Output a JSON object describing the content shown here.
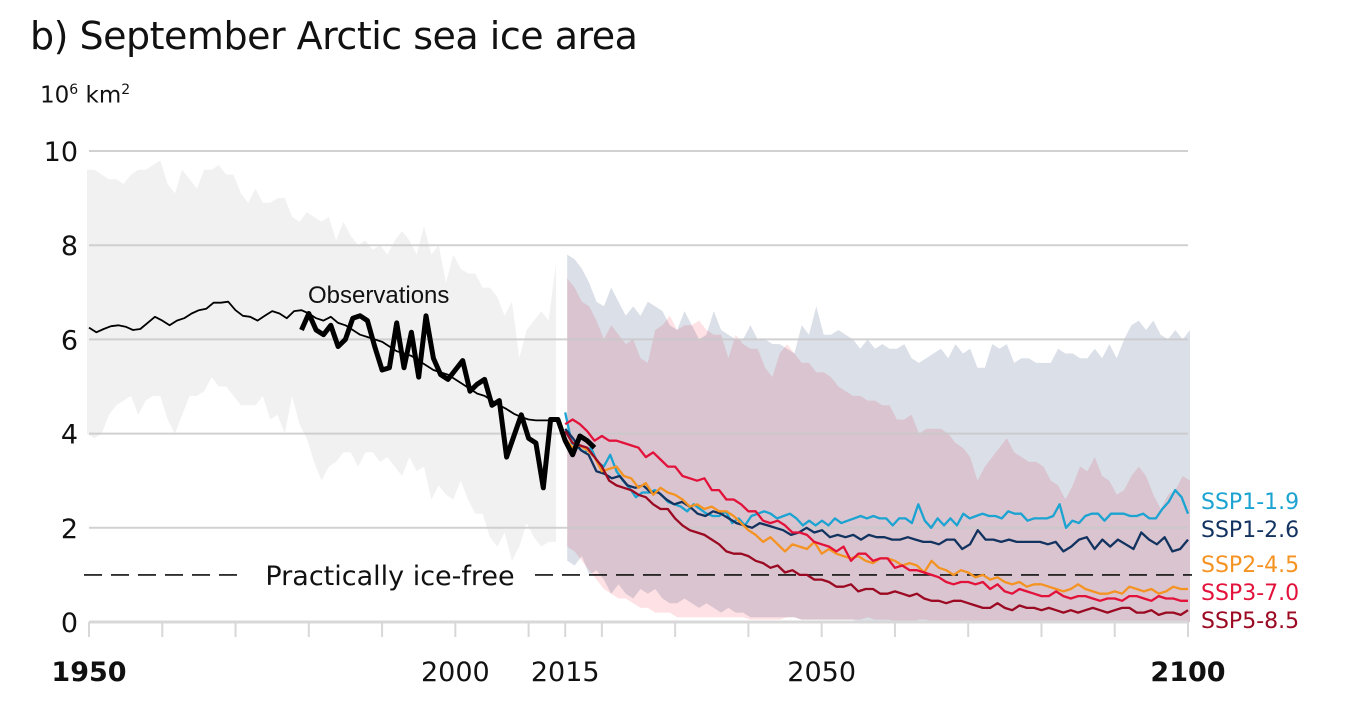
{
  "chart_data": {
    "type": "line",
    "title": "b) September Arctic sea ice area",
    "unit_label": {
      "base": "10",
      "exp": "6",
      "rest": " km",
      "rest_exp": "2"
    },
    "xlabel": "",
    "ylabel": "10^6 km^2",
    "xlim": [
      1950,
      2100
    ],
    "ylim": [
      0,
      10
    ],
    "grid": true,
    "y_ticks": [
      0,
      2,
      4,
      6,
      8,
      10
    ],
    "x_tick_marks": [
      1950,
      1960,
      1970,
      1980,
      1990,
      2000,
      2010,
      2015,
      2020,
      2030,
      2040,
      2050,
      2060,
      2070,
      2080,
      2090,
      2100
    ],
    "x_tick_labels": [
      {
        "year": 1950,
        "label": "1950",
        "bold": true
      },
      {
        "year": 2000,
        "label": "2000",
        "bold": false
      },
      {
        "year": 2015,
        "label": "2015",
        "bold": false
      },
      {
        "year": 2050,
        "label": "2050",
        "bold": false
      },
      {
        "year": 2100,
        "label": "2100",
        "bold": true
      }
    ],
    "reference_line": {
      "value": 1,
      "label": "Practically ice-free",
      "style": "dashed"
    },
    "observations_label": "Observations",
    "legend_placement": "right",
    "historical_band": {
      "color": "#f1f1f1",
      "x_start": 1950,
      "upper": [
        9.6,
        9.6,
        9.5,
        9.4,
        9.4,
        9.3,
        9.5,
        9.6,
        9.6,
        9.7,
        9.8,
        9.3,
        9.1,
        9.6,
        9.4,
        9.2,
        9.6,
        9.6,
        9.7,
        9.5,
        9.5,
        9.1,
        8.9,
        9.2,
        8.9,
        8.9,
        9.0,
        9.0,
        8.6,
        8.5,
        8.7,
        8.6,
        8.5,
        8.6,
        8.1,
        8.5,
        8.2,
        8.0,
        8.1,
        7.9,
        8.0,
        7.8,
        8.1,
        8.3,
        8.1,
        7.8,
        8.4,
        7.8,
        8.0,
        7.2,
        7.8,
        7.5,
        7.4,
        7.4,
        7.1,
        7.1,
        6.9,
        6.5,
        6.8,
        5.6,
        6.2,
        6.4,
        6.6,
        6.4,
        7.6
      ],
      "lower": [
        4.0,
        3.9,
        4.0,
        4.4,
        4.6,
        4.7,
        4.8,
        4.4,
        4.7,
        4.8,
        4.8,
        4.3,
        4.0,
        4.4,
        4.8,
        4.8,
        4.9,
        5.2,
        5.0,
        5.0,
        4.8,
        4.6,
        4.6,
        4.6,
        4.8,
        4.3,
        4.4,
        4.0,
        4.8,
        4.2,
        3.9,
        3.4,
        3.0,
        3.3,
        3.4,
        3.6,
        3.6,
        3.3,
        3.6,
        3.6,
        3.4,
        3.5,
        3.3,
        3.1,
        3.5,
        3.2,
        3.3,
        2.6,
        2.9,
        2.7,
        2.6,
        3.0,
        2.6,
        2.3,
        2.3,
        1.8,
        1.6,
        1.9,
        1.3,
        1.6,
        2.1,
        1.8,
        1.6,
        1.7,
        1.7
      ]
    },
    "historical_mean": {
      "color": "#000000",
      "x_start": 1950,
      "values": [
        6.25,
        6.15,
        6.22,
        6.28,
        6.3,
        6.27,
        6.2,
        6.22,
        6.35,
        6.48,
        6.4,
        6.3,
        6.4,
        6.45,
        6.55,
        6.62,
        6.65,
        6.78,
        6.78,
        6.8,
        6.62,
        6.5,
        6.48,
        6.4,
        6.5,
        6.6,
        6.55,
        6.45,
        6.6,
        6.62,
        6.55,
        6.45,
        6.4,
        6.48,
        6.35,
        6.3,
        6.2,
        6.1,
        6.05,
        6.0,
        5.95,
        5.85,
        5.75,
        5.7,
        5.65,
        5.55,
        5.45,
        5.35,
        5.3,
        5.25,
        5.15,
        5.05,
        4.95,
        4.85,
        4.8,
        4.7,
        4.6,
        4.52,
        4.42,
        4.35,
        4.3,
        4.28,
        4.28,
        4.28,
        4.28
      ]
    },
    "observations": {
      "color": "#000000",
      "x_start": 1979,
      "values": [
        6.2,
        6.55,
        6.2,
        6.1,
        6.3,
        5.85,
        6.0,
        6.45,
        6.5,
        6.4,
        5.85,
        5.35,
        5.4,
        6.35,
        5.4,
        6.15,
        5.2,
        6.5,
        5.6,
        5.25,
        5.15,
        5.35,
        5.55,
        4.9,
        5.05,
        5.15,
        4.6,
        4.7,
        3.5,
        3.95,
        4.4,
        3.9,
        3.8,
        2.85,
        4.3,
        4.3,
        3.85,
        3.55,
        3.95,
        3.85,
        3.7
      ]
    },
    "projection_bands": [
      {
        "name": "SSP1-2.6 range",
        "color": "#dadfe8",
        "x_start": 2015,
        "upper": [
          7.8,
          7.7,
          7.5,
          7.2,
          6.8,
          6.7,
          7.1,
          6.8,
          6.5,
          6.7,
          6.5,
          6.8,
          6.7,
          6.6,
          6.3,
          6.2,
          6.6,
          6.3,
          6.0,
          6.1,
          6.6,
          6.2,
          6.1,
          6.0,
          6.0,
          6.3,
          6.0,
          6.0,
          5.9,
          5.9,
          5.8,
          5.7,
          6.3,
          6.1,
          6.7,
          6.1,
          6.1,
          6.2,
          6.1,
          6.0,
          5.8,
          6.0,
          5.8,
          5.9,
          5.8,
          5.8,
          5.9,
          5.6,
          5.5,
          5.6,
          5.7,
          5.8,
          5.6,
          5.9,
          5.7,
          5.8,
          5.4,
          5.4,
          5.9,
          5.8,
          5.9,
          5.5,
          5.6,
          5.6,
          5.5,
          5.5,
          5.5,
          5.8,
          5.7,
          5.7,
          5.6,
          5.6,
          5.8,
          5.6,
          5.9,
          5.6,
          6.0,
          6.3,
          6.4,
          6.2,
          6.4,
          6.1,
          6.0,
          6.2,
          6.0,
          6.2
        ],
        "lower": [
          1.3,
          1.2,
          1.4,
          1.0,
          1.1,
          0.9,
          0.6,
          0.8,
          0.6,
          0.5,
          0.7,
          0.6,
          0.7,
          0.5,
          0.4,
          0.4,
          0.5,
          0.4,
          0.3,
          0.4,
          0.3,
          0.2,
          0.3,
          0.2,
          0.2,
          0.1,
          0.1,
          0.1,
          0.1,
          0.1,
          0.1,
          0.1,
          0.05,
          0.05,
          0.05,
          0.05,
          0.05,
          0.05,
          0.05,
          0.05,
          0.0,
          0.0,
          0.0,
          0.0,
          0.0,
          0.0,
          0.0,
          0.0,
          0.0,
          0.0,
          0.0,
          0.0,
          0.0,
          0.0,
          0.0,
          0.0,
          0.0,
          0.0,
          0.0,
          0.0,
          0.0,
          0.0,
          0.0,
          0.0,
          0.0,
          0.0,
          0.0,
          0.0,
          0.0,
          0.0,
          0.0,
          0.0,
          0.0,
          0.0,
          0.0,
          0.0,
          0.0,
          0.0,
          0.0,
          0.0,
          0.0,
          0.0,
          0.0,
          0.0,
          0.0,
          0.0
        ]
      },
      {
        "name": "SSP3-7.0 range",
        "color": "#fdd5da",
        "x_start": 2015,
        "upper": [
          7.3,
          7.1,
          6.8,
          6.7,
          6.4,
          6.0,
          6.3,
          6.1,
          5.9,
          6.0,
          5.6,
          5.5,
          6.2,
          6.3,
          6.5,
          6.2,
          6.3,
          6.3,
          6.4,
          6.2,
          6.1,
          6.1,
          5.6,
          6.1,
          5.9,
          5.8,
          5.8,
          5.4,
          5.2,
          5.7,
          5.9,
          5.7,
          5.5,
          5.5,
          5.3,
          5.3,
          5.2,
          5.0,
          4.9,
          4.8,
          4.8,
          4.7,
          4.7,
          4.6,
          4.6,
          4.3,
          4.3,
          4.4,
          4.0,
          4.1,
          4.1,
          4.1,
          4.0,
          3.8,
          3.7,
          3.5,
          3.0,
          3.3,
          3.5,
          3.7,
          3.9,
          3.6,
          3.5,
          3.4,
          3.4,
          3.3,
          3.0,
          2.9,
          2.6,
          2.9,
          3.3,
          3.2,
          3.5,
          3.1,
          3.0,
          2.7,
          2.8,
          3.1,
          3.3,
          3.1,
          2.7,
          2.4,
          2.7,
          2.8,
          3.1,
          3.0
        ],
        "lower": [
          1.6,
          1.5,
          1.3,
          1.1,
          0.9,
          0.7,
          0.6,
          0.5,
          0.5,
          0.4,
          0.3,
          0.3,
          0.2,
          0.2,
          0.2,
          0.1,
          0.1,
          0.1,
          0.1,
          0.1,
          0.1,
          0.1,
          0.1,
          0.1,
          0.1,
          0.05,
          0.05,
          0.05,
          0.05,
          0.05,
          0.1,
          0.1,
          0.05,
          0.05,
          0.05,
          0.05,
          0.05,
          0.05,
          0.05,
          0.05,
          0.05,
          0.1,
          0.05,
          0.05,
          0.05,
          0.0,
          0.0,
          0.0,
          0.05,
          0.05,
          0.0,
          0.0,
          0.0,
          0.0,
          0.0,
          0.0,
          0.0,
          0.0,
          0.0,
          0.0,
          0.0,
          0.0,
          0.0,
          0.0,
          0.0,
          0.0,
          0.0,
          0.0,
          0.0,
          0.0,
          0.0,
          0.0,
          0.0,
          0.0,
          0.0,
          0.0,
          0.0,
          0.0,
          0.0,
          0.0,
          0.0,
          0.0,
          0.0,
          0.0,
          0.0,
          0.0
        ]
      }
    ],
    "series": [
      {
        "name": "SSP1-1.9",
        "color": "#1ba3d1",
        "x_start": 2015,
        "values": [
          4.45,
          3.8,
          3.7,
          3.6,
          3.7,
          3.4,
          3.3,
          3.55,
          3.2,
          3.0,
          2.85,
          2.65,
          2.75,
          2.75,
          2.8,
          2.7,
          2.55,
          2.5,
          2.45,
          2.35,
          2.5,
          2.4,
          2.3,
          2.25,
          2.25,
          2.35,
          2.1,
          2.2,
          2.05,
          2.25,
          2.3,
          2.35,
          2.3,
          2.2,
          2.25,
          2.3,
          2.2,
          2.05,
          2.15,
          2.05,
          2.15,
          2.05,
          2.2,
          2.1,
          2.15,
          2.2,
          2.25,
          2.2,
          2.25,
          2.2,
          2.2,
          2.05,
          2.2,
          2.2,
          2.1,
          2.5,
          2.15,
          2.0,
          2.2,
          2.05,
          2.2,
          2.05,
          2.3,
          2.2,
          2.25,
          2.3,
          2.25,
          2.25,
          2.2,
          2.35,
          2.3,
          2.3,
          2.15,
          2.2,
          2.2,
          2.2,
          2.25,
          2.5,
          2.0,
          2.15,
          2.1,
          2.25,
          2.3,
          2.3,
          2.15,
          2.3,
          2.3,
          2.3,
          2.25,
          2.25,
          2.3,
          2.2,
          2.2,
          2.4,
          2.55,
          2.8,
          2.65,
          2.3
        ]
      },
      {
        "name": "SSP1-2.6",
        "color": "#12325f",
        "x_start": 2015,
        "values": [
          4.1,
          3.9,
          3.65,
          3.55,
          3.2,
          3.15,
          3.05,
          3.1,
          2.9,
          2.85,
          2.9,
          2.75,
          2.75,
          2.6,
          2.5,
          2.55,
          2.45,
          2.3,
          2.25,
          2.35,
          2.3,
          2.2,
          2.1,
          2.05,
          2.0,
          2.1,
          2.05,
          2.0,
          1.95,
          1.85,
          1.9,
          2.0,
          1.9,
          1.95,
          1.8,
          1.85,
          1.8,
          1.85,
          1.75,
          1.85,
          1.8,
          1.8,
          1.75,
          1.75,
          1.8,
          1.75,
          1.7,
          1.7,
          1.65,
          1.75,
          1.75,
          1.55,
          1.65,
          1.95,
          1.75,
          1.75,
          1.7,
          1.75,
          1.7,
          1.7,
          1.7,
          1.7,
          1.65,
          1.7,
          1.5,
          1.6,
          1.75,
          1.8,
          1.55,
          1.75,
          1.6,
          1.75,
          1.65,
          1.55,
          1.9,
          1.75,
          1.65,
          1.8,
          1.5,
          1.55,
          1.75
        ],
        "note": "SSP1-2.6 values beyond 2095 continue near 1.6-1.8"
      },
      {
        "name": "SSP2-4.5",
        "color": "#f59322",
        "x_start": 2015,
        "values": [
          3.9,
          3.7,
          3.75,
          3.65,
          3.5,
          3.2,
          3.25,
          3.3,
          3.1,
          3.05,
          2.85,
          2.95,
          2.7,
          2.85,
          2.75,
          2.7,
          2.6,
          2.45,
          2.5,
          2.4,
          2.45,
          2.35,
          2.35,
          2.25,
          2.1,
          1.95,
          1.85,
          1.7,
          1.8,
          1.65,
          1.5,
          1.65,
          1.6,
          1.55,
          1.7,
          1.45,
          1.55,
          1.45,
          1.4,
          1.35,
          1.4,
          1.3,
          1.25,
          1.35,
          1.35,
          1.3,
          1.2,
          1.25,
          1.2,
          1.05,
          1.3,
          1.15,
          1.1,
          1.0,
          1.1,
          1.05,
          0.95,
          1.0,
          0.9,
          0.95,
          0.85,
          0.8,
          0.85,
          0.75,
          0.8,
          0.8,
          0.75,
          0.7,
          0.65,
          0.7,
          0.8,
          0.7,
          0.65,
          0.6,
          0.6,
          0.65,
          0.6,
          0.75,
          0.7,
          0.65,
          0.7,
          0.6,
          0.65,
          0.75,
          0.7,
          0.7
        ],
        "note_end": 0.75
      },
      {
        "name": "SSP3-7.0",
        "color": "#e3123b",
        "x_start": 2015,
        "values": [
          4.2,
          4.3,
          4.2,
          4.05,
          3.85,
          3.95,
          3.85,
          3.85,
          3.8,
          3.75,
          3.7,
          3.5,
          3.6,
          3.45,
          3.3,
          3.3,
          3.1,
          3.05,
          3.0,
          3.05,
          2.8,
          2.8,
          2.6,
          2.6,
          2.5,
          2.35,
          2.35,
          2.15,
          2.1,
          2.15,
          2.05,
          1.9,
          1.9,
          1.85,
          1.7,
          1.65,
          1.6,
          1.5,
          1.6,
          1.3,
          1.45,
          1.45,
          1.3,
          1.35,
          1.35,
          1.15,
          1.2,
          1.1,
          1.1,
          1.05,
          1.0,
          0.95,
          0.85,
          0.8,
          0.85,
          0.85,
          0.8,
          0.85,
          0.7,
          0.8,
          0.65,
          0.6,
          0.7,
          0.65,
          0.6,
          0.55,
          0.55,
          0.65,
          0.55,
          0.5,
          0.55,
          0.55,
          0.5,
          0.45,
          0.5,
          0.5,
          0.45,
          0.55,
          0.55,
          0.5,
          0.45,
          0.55,
          0.5,
          0.5,
          0.45,
          0.45
        ],
        "note_end": 0.45
      },
      {
        "name": "SSP5-8.5",
        "color": "#9b0a22",
        "x_start": 2015,
        "values": [
          4.05,
          3.8,
          3.75,
          3.7,
          3.5,
          3.3,
          3.0,
          2.9,
          2.85,
          2.8,
          2.7,
          2.65,
          2.5,
          2.4,
          2.4,
          2.2,
          2.05,
          1.95,
          1.9,
          1.85,
          1.75,
          1.65,
          1.5,
          1.45,
          1.45,
          1.4,
          1.3,
          1.25,
          1.15,
          1.2,
          1.05,
          1.1,
          1.0,
          1.0,
          0.9,
          0.9,
          0.85,
          0.75,
          0.75,
          0.8,
          0.65,
          0.7,
          0.7,
          0.6,
          0.6,
          0.65,
          0.6,
          0.55,
          0.6,
          0.5,
          0.45,
          0.45,
          0.4,
          0.45,
          0.45,
          0.4,
          0.35,
          0.3,
          0.3,
          0.4,
          0.3,
          0.25,
          0.35,
          0.3,
          0.3,
          0.25,
          0.3,
          0.25,
          0.2,
          0.25,
          0.2,
          0.25,
          0.3,
          0.25,
          0.2,
          0.25,
          0.3,
          0.3,
          0.2,
          0.2,
          0.25,
          0.15,
          0.2,
          0.2,
          0.15,
          0.25
        ],
        "note_end": 0.25
      }
    ]
  }
}
